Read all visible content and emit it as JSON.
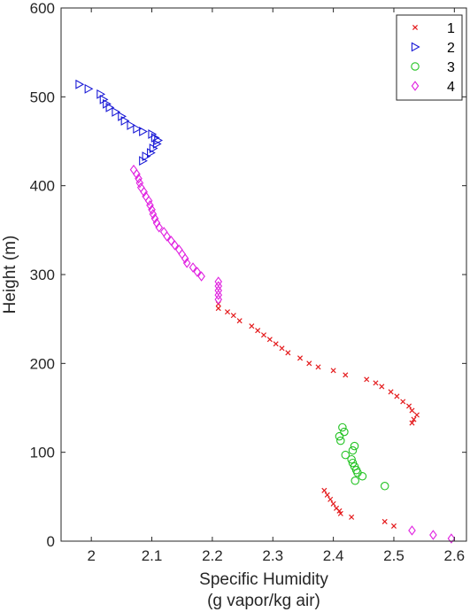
{
  "chart_data": {
    "type": "scatter",
    "xlabel": [
      "Specific Humidity",
      "(g vapor/kg air)"
    ],
    "ylabel": "Height (m)",
    "xlim": [
      1.95,
      2.62
    ],
    "ylim": [
      0,
      600
    ],
    "xticks": [
      2,
      2.1,
      2.2,
      2.3,
      2.4,
      2.5,
      2.6
    ],
    "yticks": [
      0,
      100,
      200,
      300,
      400,
      500,
      600
    ],
    "legend_position": "top-right",
    "grid": false,
    "series": [
      {
        "name": "1",
        "marker": "x",
        "color": "#e41a1c",
        "points": [
          [
            2.21,
            262
          ],
          [
            2.21,
            267
          ],
          [
            2.225,
            258
          ],
          [
            2.235,
            254
          ],
          [
            2.245,
            248
          ],
          [
            2.265,
            242
          ],
          [
            2.275,
            237
          ],
          [
            2.285,
            232
          ],
          [
            2.295,
            227
          ],
          [
            2.305,
            222
          ],
          [
            2.315,
            217
          ],
          [
            2.325,
            212
          ],
          [
            2.345,
            206
          ],
          [
            2.36,
            200
          ],
          [
            2.375,
            196
          ],
          [
            2.4,
            192
          ],
          [
            2.42,
            187
          ],
          [
            2.455,
            182
          ],
          [
            2.47,
            178
          ],
          [
            2.48,
            174
          ],
          [
            2.495,
            168
          ],
          [
            2.505,
            163
          ],
          [
            2.515,
            157
          ],
          [
            2.525,
            152
          ],
          [
            2.53,
            147
          ],
          [
            2.538,
            142
          ],
          [
            2.533,
            137
          ],
          [
            2.53,
            133
          ],
          [
            2.385,
            57
          ],
          [
            2.39,
            52
          ],
          [
            2.395,
            47
          ],
          [
            2.4,
            42
          ],
          [
            2.405,
            37
          ],
          [
            2.41,
            34
          ],
          [
            2.412,
            31
          ],
          [
            2.43,
            27
          ],
          [
            2.485,
            22
          ],
          [
            2.5,
            17
          ]
        ]
      },
      {
        "name": "2",
        "marker": "triangle-right",
        "color": "#1a1ad6",
        "points": [
          [
            1.98,
            514
          ],
          [
            1.995,
            509
          ],
          [
            2.015,
            503
          ],
          [
            2.02,
            497
          ],
          [
            2.025,
            492
          ],
          [
            2.03,
            488
          ],
          [
            2.04,
            483
          ],
          [
            2.05,
            478
          ],
          [
            2.055,
            473
          ],
          [
            2.065,
            468
          ],
          [
            2.075,
            464
          ],
          [
            2.085,
            461
          ],
          [
            2.1,
            458
          ],
          [
            2.105,
            454
          ],
          [
            2.11,
            451
          ],
          [
            2.108,
            447
          ],
          [
            2.102,
            442
          ],
          [
            2.098,
            437
          ],
          [
            2.09,
            433
          ],
          [
            2.085,
            428
          ]
        ]
      },
      {
        "name": "3",
        "marker": "circle",
        "color": "#22c322",
        "points": [
          [
            2.415,
            128
          ],
          [
            2.418,
            123
          ],
          [
            2.41,
            118
          ],
          [
            2.412,
            113
          ],
          [
            2.435,
            107
          ],
          [
            2.432,
            102
          ],
          [
            2.42,
            97
          ],
          [
            2.43,
            92
          ],
          [
            2.432,
            88
          ],
          [
            2.435,
            84
          ],
          [
            2.438,
            80
          ],
          [
            2.44,
            77
          ],
          [
            2.448,
            73
          ],
          [
            2.436,
            68
          ],
          [
            2.485,
            62
          ]
        ]
      },
      {
        "name": "4",
        "marker": "diamond",
        "color": "#e01fe0",
        "points": [
          [
            2.07,
            418
          ],
          [
            2.075,
            413
          ],
          [
            2.078,
            408
          ],
          [
            2.08,
            403
          ],
          [
            2.082,
            398
          ],
          [
            2.087,
            393
          ],
          [
            2.09,
            388
          ],
          [
            2.095,
            383
          ],
          [
            2.097,
            378
          ],
          [
            2.1,
            373
          ],
          [
            2.102,
            368
          ],
          [
            2.105,
            363
          ],
          [
            2.108,
            358
          ],
          [
            2.112,
            353
          ],
          [
            2.12,
            348
          ],
          [
            2.125,
            343
          ],
          [
            2.132,
            338
          ],
          [
            2.138,
            333
          ],
          [
            2.145,
            328
          ],
          [
            2.15,
            323
          ],
          [
            2.155,
            318
          ],
          [
            2.158,
            313
          ],
          [
            2.168,
            308
          ],
          [
            2.175,
            303
          ],
          [
            2.182,
            298
          ],
          [
            2.21,
            292
          ],
          [
            2.21,
            287
          ],
          [
            2.21,
            282
          ],
          [
            2.21,
            277
          ],
          [
            2.21,
            272
          ],
          [
            2.53,
            12
          ],
          [
            2.565,
            7
          ],
          [
            2.595,
            3
          ]
        ]
      }
    ]
  }
}
